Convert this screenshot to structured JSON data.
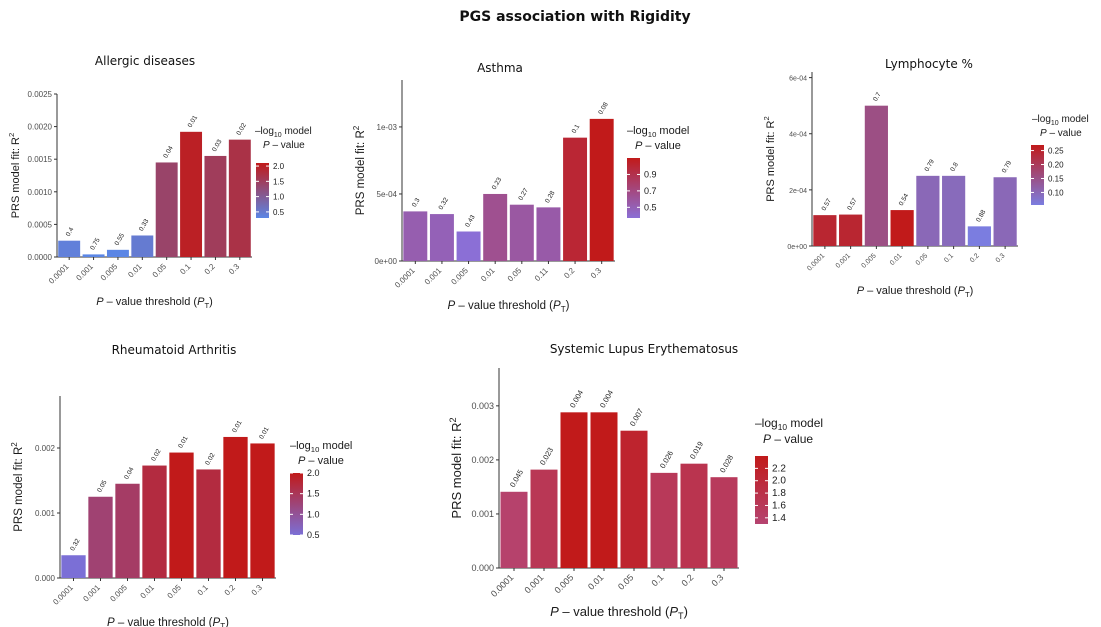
{
  "title": "PGS association with Rigidity",
  "chart_data": [
    {
      "type": "bar",
      "title": "Allergic diseases",
      "categories": [
        "0.0001",
        "0.001",
        "0.005",
        "0.01",
        "0.05",
        "0.1",
        "0.2",
        "0.3"
      ],
      "values": [
        0.00025,
        4e-05,
        0.00011,
        0.00033,
        0.00145,
        0.00192,
        0.00155,
        0.0018
      ],
      "bar_labels": [
        "0.4",
        "0.75",
        "0.55",
        "0.33",
        "0.04",
        "0.01",
        "0.03",
        "0.02"
      ],
      "neglog10_p": [
        0.4,
        0.12,
        0.26,
        0.48,
        1.4,
        2.0,
        1.52,
        1.7
      ],
      "ylim": [
        0,
        0.0025
      ],
      "yticks": [
        0,
        0.0005,
        0.001,
        0.0015,
        0.002,
        0.0025
      ],
      "ytick_labels": [
        "0.0000",
        "0.0005",
        "0.0010",
        "0.0015",
        "0.0020",
        "0.0025"
      ],
      "xlabel_prefix": "P",
      "xlabel_text": " – value threshold (",
      "xlabel_sym": "P",
      "xlabel_sub": "T",
      "xlabel_close": ")",
      "ylabel_text": "PRS model fit:  R",
      "ylabel_sup": "2",
      "legend": {
        "title_line1_prefix": "–log",
        "title_sub": "10",
        "title_line1_suffix": " model",
        "title_line2_italic": "P",
        "title_line2_rest": " – value",
        "ticks": [
          0.5,
          1.0,
          1.5,
          2.0
        ],
        "tick_labels": [
          "0.5",
          "1.0",
          "1.5",
          "2.0"
        ],
        "range": [
          0.3,
          2.1
        ]
      },
      "colors": {
        "low": "#5b86e5",
        "high": "#c11a1a"
      }
    },
    {
      "type": "bar",
      "title": "Asthma",
      "categories": [
        "0.0001",
        "0.001",
        "0.005",
        "0.01",
        "0.05",
        "0.11",
        "0.2",
        "0.3"
      ],
      "values": [
        0.00037,
        0.00035,
        0.00022,
        0.0005,
        0.00042,
        0.0004,
        0.00092,
        0.00106
      ],
      "bar_labels": [
        "0.3",
        "0.32",
        "0.43",
        "0.23",
        "0.27",
        "0.28",
        "0.1",
        "0.08"
      ],
      "neglog10_p": [
        0.52,
        0.49,
        0.37,
        0.64,
        0.57,
        0.55,
        1.0,
        1.1
      ],
      "ylim": [
        0,
        0.00135
      ],
      "yticks": [
        0,
        0.0005,
        0.001
      ],
      "ytick_labels": [
        "0e+00",
        "5e-04",
        "1e-03"
      ],
      "xlabel_prefix": "P",
      "xlabel_text": " – value threshold (",
      "xlabel_sym": "P",
      "xlabel_sub": "T",
      "xlabel_close": ")",
      "ylabel_text": "PRS model fit:  R",
      "ylabel_sup": "2",
      "legend": {
        "title_line1_prefix": "–log",
        "title_sub": "10",
        "title_line1_suffix": " model",
        "title_line2_italic": "P",
        "title_line2_rest": " – value",
        "ticks": [
          0.5,
          0.7,
          0.9
        ],
        "tick_labels": [
          "0.5",
          "0.7",
          "0.9"
        ],
        "range": [
          0.37,
          1.1
        ]
      },
      "colors": {
        "low": "#8b6fd6",
        "high": "#c11a1a"
      }
    },
    {
      "type": "bar",
      "title": "Lymphocyte %",
      "categories": [
        "0.0001",
        "0.001",
        "0.005",
        "0.01",
        "0.05",
        "0.1",
        "0.2",
        "0.3"
      ],
      "values": [
        0.00011,
        0.000112,
        0.0005,
        0.000128,
        0.00025,
        0.00025,
        7e-05,
        0.000245
      ],
      "bar_labels": [
        "0.57",
        "0.57",
        "0.7",
        "0.54",
        "0.79",
        "0.8",
        "0.88",
        "0.79"
      ],
      "neglog10_p": [
        0.245,
        0.245,
        0.155,
        0.27,
        0.1,
        0.095,
        0.055,
        0.1
      ],
      "ylim": [
        0,
        0.00062
      ],
      "yticks": [
        0,
        0.0002,
        0.0004,
        0.0006
      ],
      "ytick_labels": [
        "0e+00",
        "2e-04",
        "4e-04",
        "6e-04"
      ],
      "xlabel_prefix": "P",
      "xlabel_text": " – value threshold (",
      "xlabel_sym": "P",
      "xlabel_sub": "T",
      "xlabel_close": ")",
      "ylabel_text": "PRS model fit:  R",
      "ylabel_sup": "2",
      "legend": {
        "title_line1_prefix": "–log",
        "title_sub": "10",
        "title_line1_suffix": " model",
        "title_line2_italic": "P",
        "title_line2_rest": " – value",
        "ticks": [
          0.1,
          0.15,
          0.2,
          0.25
        ],
        "tick_labels": [
          "0.10",
          "0.15",
          "0.20",
          "0.25"
        ],
        "range": [
          0.055,
          0.27
        ]
      },
      "colors": {
        "low": "#7b7de0",
        "high": "#c11a1a"
      }
    },
    {
      "type": "bar",
      "title": "Rheumatoid Arthritis",
      "categories": [
        "0.0001",
        "0.001",
        "0.005",
        "0.01",
        "0.05",
        "0.1",
        "0.2",
        "0.3"
      ],
      "values": [
        0.00035,
        0.00125,
        0.00145,
        0.00173,
        0.00193,
        0.00167,
        0.00217,
        0.00207
      ],
      "bar_labels": [
        "0.32",
        "0.05",
        "0.04",
        "0.02",
        "0.01",
        "0.02",
        "0.01",
        "0.01"
      ],
      "neglog10_p": [
        0.5,
        1.3,
        1.4,
        1.7,
        2.0,
        1.7,
        2.0,
        2.0
      ],
      "ylim": [
        0,
        0.0028
      ],
      "yticks": [
        0,
        0.001,
        0.002
      ],
      "ytick_labels": [
        "0.000",
        "0.001",
        "0.002"
      ],
      "xlabel_prefix": "P",
      "xlabel_text": " – value threshold (",
      "xlabel_sym": "P",
      "xlabel_sub": "T",
      "xlabel_close": ")",
      "ylabel_text": "PRS model fit:  R",
      "ylabel_sup": "2",
      "legend": {
        "title_line1_prefix": "–log",
        "title_sub": "10",
        "title_line1_suffix": " model",
        "title_line2_italic": "P",
        "title_line2_rest": " – value",
        "ticks": [
          0.5,
          1.0,
          1.5,
          2.0
        ],
        "tick_labels": [
          "0.5",
          "1.0",
          "1.5",
          "2.0"
        ],
        "range": [
          0.5,
          2.0
        ]
      },
      "colors": {
        "low": "#7b6fd6",
        "high": "#c11a1a"
      }
    },
    {
      "type": "bar",
      "title": "Systemic Lupus Erythematosus",
      "categories": [
        "0.0001",
        "0.001",
        "0.005",
        "0.01",
        "0.05",
        "0.1",
        "0.2",
        "0.3"
      ],
      "values": [
        0.00141,
        0.00182,
        0.00288,
        0.00288,
        0.00254,
        0.00176,
        0.00193,
        0.00168
      ],
      "bar_labels": [
        "0.045",
        "0.023",
        "0.004",
        "0.004",
        "0.007",
        "0.026",
        "0.019",
        "0.028"
      ],
      "neglog10_p": [
        1.35,
        1.64,
        2.4,
        2.4,
        2.15,
        1.59,
        1.72,
        1.55
      ],
      "ylim": [
        0,
        0.0037
      ],
      "yticks": [
        0,
        0.001,
        0.002,
        0.003
      ],
      "ytick_labels": [
        "0.000",
        "0.001",
        "0.002",
        "0.003"
      ],
      "xlabel_prefix": "P",
      "xlabel_text": " – value threshold (",
      "xlabel_sym": "P",
      "xlabel_sub": "T",
      "xlabel_close": ")",
      "ylabel_text": "PRS model fit:  R",
      "ylabel_sup": "2",
      "legend": {
        "title_line1_prefix": "–log",
        "title_sub": "10",
        "title_line1_suffix": " model",
        "title_line2_italic": "P",
        "title_line2_rest": " – value",
        "ticks": [
          1.4,
          1.6,
          1.8,
          2.0,
          2.2
        ],
        "tick_labels": [
          "1.4",
          "1.6",
          "1.8",
          "2.0",
          "2.2"
        ],
        "range": [
          1.3,
          2.4
        ]
      },
      "colors": {
        "low": "#b54470",
        "high": "#c11a1a"
      }
    }
  ]
}
